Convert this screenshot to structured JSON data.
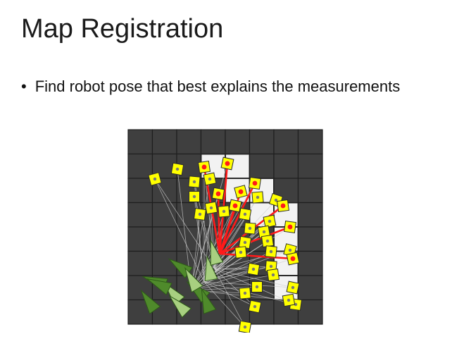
{
  "slide": {
    "title": "Map Registration",
    "bullets": [
      "Find robot pose that best explains the measurements"
    ]
  },
  "colors": {
    "grid_cell": "#3f3f3f",
    "grid_line": "#1e1e1e",
    "free_cell": "#f2f2f2",
    "marker_fill": "#ffff00",
    "marker_stroke": "#2b2b2b",
    "best_ray": "#ff1a1a",
    "other_ray": "#cfcfcf",
    "pose_light": "#a8d080",
    "pose_dark": "#4f8a2b"
  }
}
